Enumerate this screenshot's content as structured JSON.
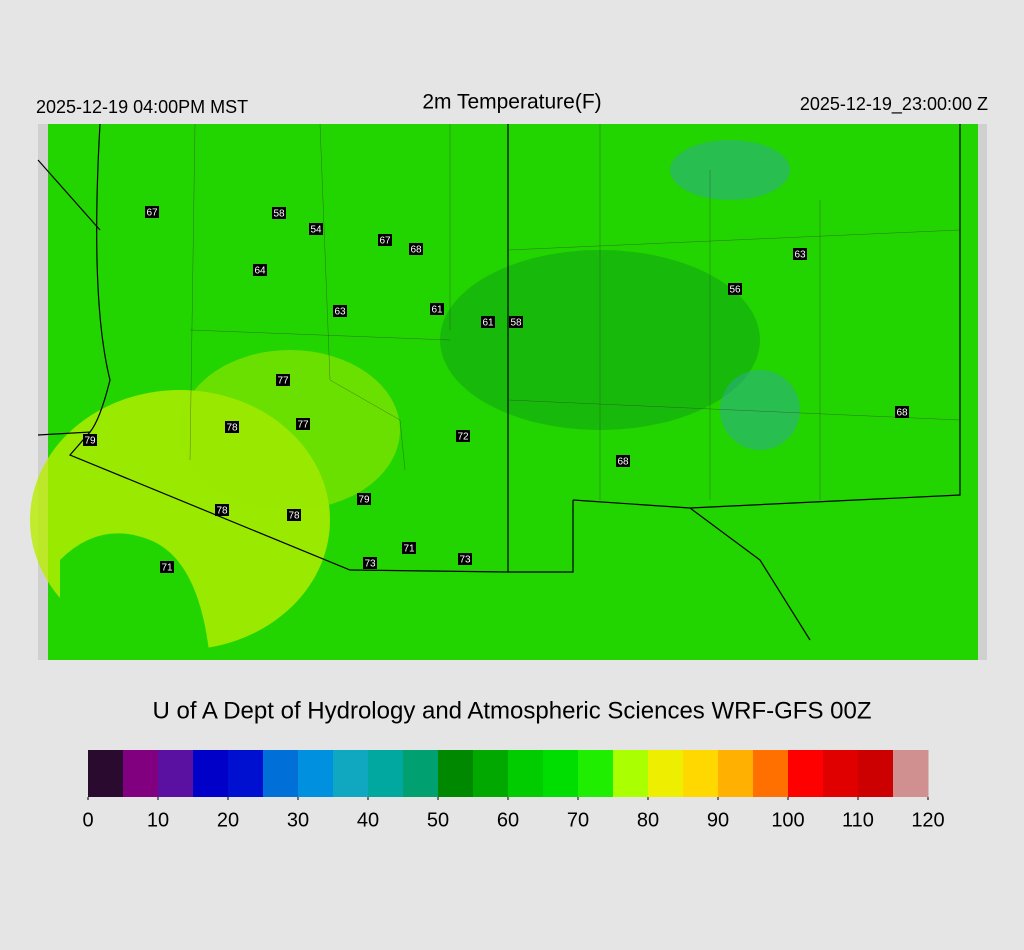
{
  "header": {
    "local_time": "2025-12-19 04:00PM MST",
    "title": "2m Temperature(F)",
    "utc_time": "2025-12-19_23:00:00 Z"
  },
  "map": {
    "station_temps": [
      67,
      58,
      54,
      67,
      68,
      64,
      63,
      61,
      61,
      58,
      56,
      63,
      77,
      78,
      77,
      72,
      79,
      68,
      68,
      79,
      78,
      78,
      71,
      73,
      73,
      71
    ]
  },
  "credit": "U of A Dept of Hydrology and Atmospheric Sciences WRF-GFS 00Z",
  "colorbar": {
    "range": [
      0,
      120
    ],
    "ticks": [
      0,
      10,
      20,
      30,
      40,
      50,
      60,
      70,
      80,
      90,
      100,
      110,
      120
    ],
    "colors": [
      "#2a0a2e",
      "#800080",
      "#5a10a0",
      "#0000c8",
      "#0010d0",
      "#0070d8",
      "#0090e0",
      "#10a8c0",
      "#00a8a0",
      "#00a070",
      "#008800",
      "#00a800",
      "#00cc00",
      "#00dd00",
      "#20ee00",
      "#aaff00",
      "#eeee00",
      "#ffd800",
      "#ffb000",
      "#ff7000",
      "#ff0000",
      "#e00000",
      "#cc0000",
      "#d09090"
    ]
  }
}
